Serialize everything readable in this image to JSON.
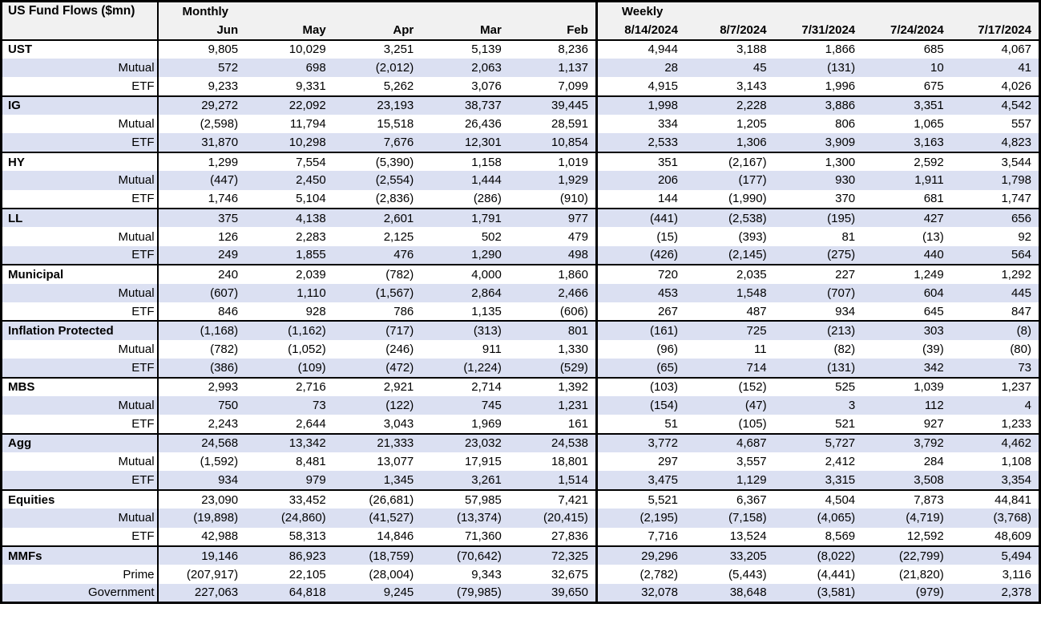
{
  "table": {
    "title": "US Fund Flows ($mn)",
    "group_headers": {
      "monthly": "Monthly",
      "weekly": "Weekly"
    },
    "columns": {
      "monthly": [
        "Jun",
        "May",
        "Apr",
        "Mar",
        "Feb"
      ],
      "weekly": [
        "8/14/2024",
        "8/7/2024",
        "7/31/2024",
        "7/24/2024",
        "7/17/2024"
      ]
    },
    "colors": {
      "band_row_bg": "#dbe0f2",
      "header_bg": "#f1f1f1",
      "border": "#000000",
      "text": "#000000"
    },
    "groups": [
      {
        "name": "UST",
        "rows": [
          {
            "label": "UST",
            "monthly": [
              "9,805",
              "10,029",
              "3,251",
              "5,139",
              "8,236"
            ],
            "weekly": [
              "4,944",
              "3,188",
              "1,866",
              "685",
              "4,067"
            ]
          },
          {
            "label": "Mutual",
            "monthly": [
              "572",
              "698",
              "(2,012)",
              "2,063",
              "1,137"
            ],
            "weekly": [
              "28",
              "45",
              "(131)",
              "10",
              "41"
            ]
          },
          {
            "label": "ETF",
            "monthly": [
              "9,233",
              "9,331",
              "5,262",
              "3,076",
              "7,099"
            ],
            "weekly": [
              "4,915",
              "3,143",
              "1,996",
              "675",
              "4,026"
            ]
          }
        ]
      },
      {
        "name": "IG",
        "rows": [
          {
            "label": "IG",
            "monthly": [
              "29,272",
              "22,092",
              "23,193",
              "38,737",
              "39,445"
            ],
            "weekly": [
              "1,998",
              "2,228",
              "3,886",
              "3,351",
              "4,542"
            ]
          },
          {
            "label": "Mutual",
            "monthly": [
              "(2,598)",
              "11,794",
              "15,518",
              "26,436",
              "28,591"
            ],
            "weekly": [
              "334",
              "1,205",
              "806",
              "1,065",
              "557"
            ]
          },
          {
            "label": "ETF",
            "monthly": [
              "31,870",
              "10,298",
              "7,676",
              "12,301",
              "10,854"
            ],
            "weekly": [
              "2,533",
              "1,306",
              "3,909",
              "3,163",
              "4,823"
            ]
          }
        ]
      },
      {
        "name": "HY",
        "rows": [
          {
            "label": "HY",
            "monthly": [
              "1,299",
              "7,554",
              "(5,390)",
              "1,158",
              "1,019"
            ],
            "weekly": [
              "351",
              "(2,167)",
              "1,300",
              "2,592",
              "3,544"
            ]
          },
          {
            "label": "Mutual",
            "monthly": [
              "(447)",
              "2,450",
              "(2,554)",
              "1,444",
              "1,929"
            ],
            "weekly": [
              "206",
              "(177)",
              "930",
              "1,911",
              "1,798"
            ]
          },
          {
            "label": "ETF",
            "monthly": [
              "1,746",
              "5,104",
              "(2,836)",
              "(286)",
              "(910)"
            ],
            "weekly": [
              "144",
              "(1,990)",
              "370",
              "681",
              "1,747"
            ]
          }
        ]
      },
      {
        "name": "LL",
        "rows": [
          {
            "label": "LL",
            "monthly": [
              "375",
              "4,138",
              "2,601",
              "1,791",
              "977"
            ],
            "weekly": [
              "(441)",
              "(2,538)",
              "(195)",
              "427",
              "656"
            ]
          },
          {
            "label": "Mutual",
            "monthly": [
              "126",
              "2,283",
              "2,125",
              "502",
              "479"
            ],
            "weekly": [
              "(15)",
              "(393)",
              "81",
              "(13)",
              "92"
            ]
          },
          {
            "label": "ETF",
            "monthly": [
              "249",
              "1,855",
              "476",
              "1,290",
              "498"
            ],
            "weekly": [
              "(426)",
              "(2,145)",
              "(275)",
              "440",
              "564"
            ]
          }
        ]
      },
      {
        "name": "Municipal",
        "rows": [
          {
            "label": "Municipal",
            "monthly": [
              "240",
              "2,039",
              "(782)",
              "4,000",
              "1,860"
            ],
            "weekly": [
              "720",
              "2,035",
              "227",
              "1,249",
              "1,292"
            ]
          },
          {
            "label": "Mutual",
            "monthly": [
              "(607)",
              "1,110",
              "(1,567)",
              "2,864",
              "2,466"
            ],
            "weekly": [
              "453",
              "1,548",
              "(707)",
              "604",
              "445"
            ]
          },
          {
            "label": "ETF",
            "monthly": [
              "846",
              "928",
              "786",
              "1,135",
              "(606)"
            ],
            "weekly": [
              "267",
              "487",
              "934",
              "645",
              "847"
            ]
          }
        ]
      },
      {
        "name": "Inflation Protected",
        "rows": [
          {
            "label": "Inflation Protected",
            "monthly": [
              "(1,168)",
              "(1,162)",
              "(717)",
              "(313)",
              "801"
            ],
            "weekly": [
              "(161)",
              "725",
              "(213)",
              "303",
              "(8)"
            ]
          },
          {
            "label": "Mutual",
            "monthly": [
              "(782)",
              "(1,052)",
              "(246)",
              "911",
              "1,330"
            ],
            "weekly": [
              "(96)",
              "11",
              "(82)",
              "(39)",
              "(80)"
            ]
          },
          {
            "label": "ETF",
            "monthly": [
              "(386)",
              "(109)",
              "(472)",
              "(1,224)",
              "(529)"
            ],
            "weekly": [
              "(65)",
              "714",
              "(131)",
              "342",
              "73"
            ]
          }
        ]
      },
      {
        "name": "MBS",
        "rows": [
          {
            "label": "MBS",
            "monthly": [
              "2,993",
              "2,716",
              "2,921",
              "2,714",
              "1,392"
            ],
            "weekly": [
              "(103)",
              "(152)",
              "525",
              "1,039",
              "1,237"
            ]
          },
          {
            "label": "Mutual",
            "monthly": [
              "750",
              "73",
              "(122)",
              "745",
              "1,231"
            ],
            "weekly": [
              "(154)",
              "(47)",
              "3",
              "112",
              "4"
            ]
          },
          {
            "label": "ETF",
            "monthly": [
              "2,243",
              "2,644",
              "3,043",
              "1,969",
              "161"
            ],
            "weekly": [
              "51",
              "(105)",
              "521",
              "927",
              "1,233"
            ]
          }
        ]
      },
      {
        "name": "Agg",
        "rows": [
          {
            "label": "Agg",
            "monthly": [
              "24,568",
              "13,342",
              "21,333",
              "23,032",
              "24,538"
            ],
            "weekly": [
              "3,772",
              "4,687",
              "5,727",
              "3,792",
              "4,462"
            ]
          },
          {
            "label": "Mutual",
            "monthly": [
              "(1,592)",
              "8,481",
              "13,077",
              "17,915",
              "18,801"
            ],
            "weekly": [
              "297",
              "3,557",
              "2,412",
              "284",
              "1,108"
            ]
          },
          {
            "label": "ETF",
            "monthly": [
              "934",
              "979",
              "1,345",
              "3,261",
              "1,514"
            ],
            "weekly": [
              "3,475",
              "1,129",
              "3,315",
              "3,508",
              "3,354"
            ]
          }
        ]
      },
      {
        "name": "Equities",
        "rows": [
          {
            "label": "Equities",
            "monthly": [
              "23,090",
              "33,452",
              "(26,681)",
              "57,985",
              "7,421"
            ],
            "weekly": [
              "5,521",
              "6,367",
              "4,504",
              "7,873",
              "44,841"
            ]
          },
          {
            "label": "Mutual",
            "monthly": [
              "(19,898)",
              "(24,860)",
              "(41,527)",
              "(13,374)",
              "(20,415)"
            ],
            "weekly": [
              "(2,195)",
              "(7,158)",
              "(4,065)",
              "(4,719)",
              "(3,768)"
            ]
          },
          {
            "label": "ETF",
            "monthly": [
              "42,988",
              "58,313",
              "14,846",
              "71,360",
              "27,836"
            ],
            "weekly": [
              "7,716",
              "13,524",
              "8,569",
              "12,592",
              "48,609"
            ]
          }
        ]
      },
      {
        "name": "MMFs",
        "rows": [
          {
            "label": "MMFs",
            "monthly": [
              "19,146",
              "86,923",
              "(18,759)",
              "(70,642)",
              "72,325"
            ],
            "weekly": [
              "29,296",
              "33,205",
              "(8,022)",
              "(22,799)",
              "5,494"
            ]
          },
          {
            "label": "Prime",
            "monthly": [
              "(207,917)",
              "22,105",
              "(28,004)",
              "9,343",
              "32,675"
            ],
            "weekly": [
              "(2,782)",
              "(5,443)",
              "(4,441)",
              "(21,820)",
              "3,116"
            ]
          },
          {
            "label": "Government",
            "monthly": [
              "227,063",
              "64,818",
              "9,245",
              "(79,985)",
              "39,650"
            ],
            "weekly": [
              "32,078",
              "38,648",
              "(3,581)",
              "(979)",
              "2,378"
            ]
          }
        ]
      }
    ]
  }
}
